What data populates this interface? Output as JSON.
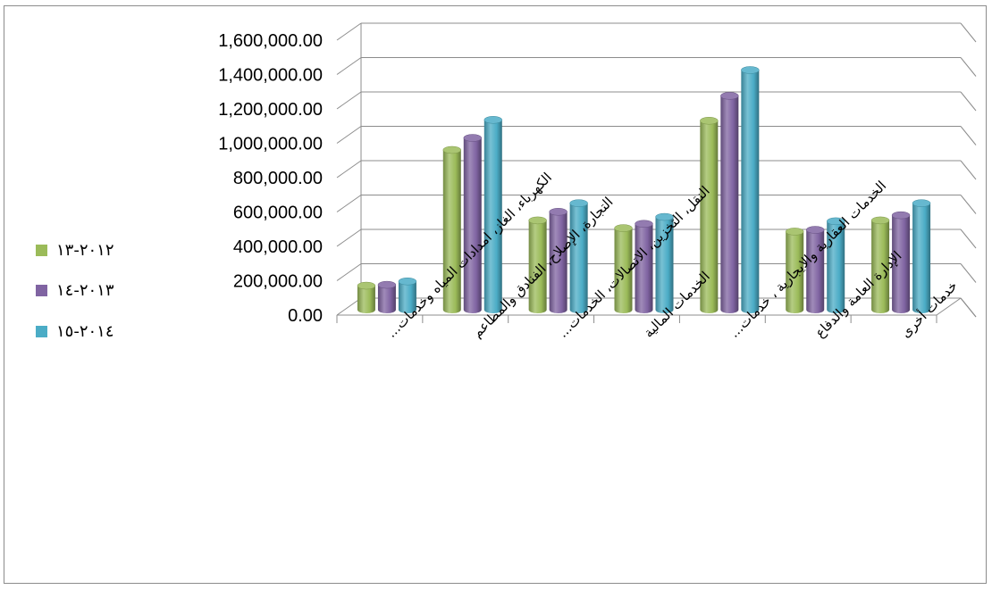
{
  "chart_data": {
    "type": "bar",
    "style": "3d-cylinder",
    "title": "",
    "xlabel": "",
    "ylabel": "",
    "ylim": [
      0,
      1600000
    ],
    "y_ticks": [
      "0.00",
      "200,000.00",
      "400,000.00",
      "600,000.00",
      "800,000.00",
      "1,000,000.00",
      "1,200,000.00",
      "1,400,000.00",
      "1,600,000.00"
    ],
    "grid": true,
    "legend_position": "left",
    "categories": [
      "الكهرباء، الغاز، امدادات المياه وخدمات...",
      "التجارة، الإصلاح، الفنادق والمطاعم",
      "النقل، التخزين، الاتصالات، الخدمات...",
      "الخدمات المالية",
      "الخدمات العقارية والايجارية ، خدمات...",
      "الإدارة العامة والدفاع",
      "خدمات أخرى"
    ],
    "series": [
      {
        "name": "٢٠١٢-١٣",
        "color": "#9bbb59",
        "values": [
          140000,
          930000,
          520000,
          475000,
          1100000,
          455000,
          520000
        ]
      },
      {
        "name": "٢٠١٣-١٤",
        "color": "#8064a2",
        "values": [
          145000,
          1000000,
          570000,
          500000,
          1245000,
          465000,
          550000
        ]
      },
      {
        "name": "٢٠١٤-١٥",
        "color": "#4bacc6",
        "values": [
          165000,
          1105000,
          620000,
          540000,
          1395000,
          515000,
          620000
        ]
      }
    ]
  }
}
